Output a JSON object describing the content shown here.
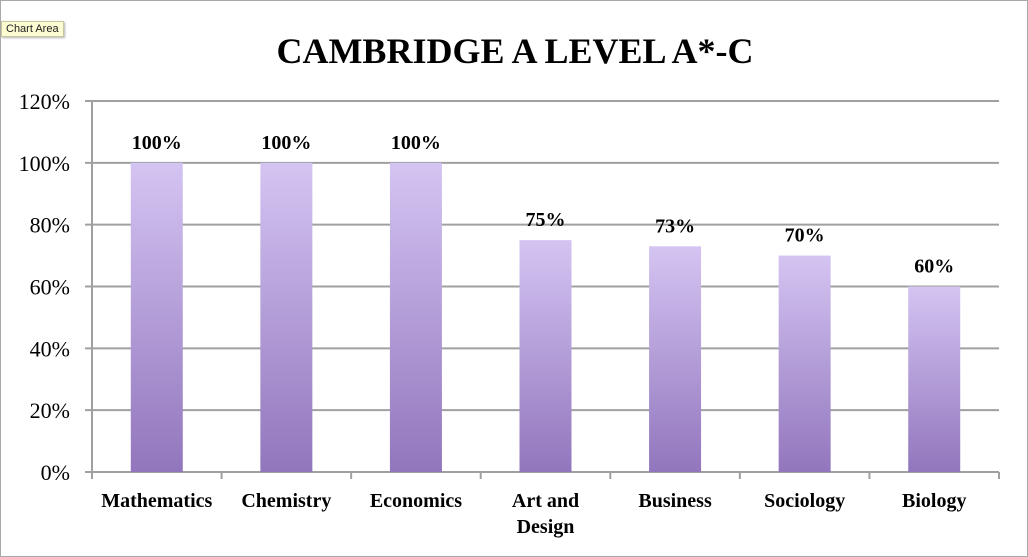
{
  "tooltip": "Chart Area",
  "chart_data": {
    "type": "bar",
    "title": "CAMBRIDGE A LEVEL A*-C",
    "categories": [
      "Mathematics",
      "Chemistry",
      "Economics",
      "Art and Design",
      "Business",
      "Sociology",
      "Biology"
    ],
    "values": [
      100,
      100,
      100,
      75,
      73,
      70,
      60
    ],
    "data_labels": [
      "100%",
      "100%",
      "100%",
      "75%",
      "73%",
      "70%",
      "60%"
    ],
    "ylim": [
      0,
      120
    ],
    "yticks": [
      "0%",
      "20%",
      "40%",
      "60%",
      "80%",
      "100%",
      "120%"
    ],
    "grid": true,
    "legend": "none",
    "colors": {
      "bar_top": "#d4c4f2",
      "bar_bottom": "#9276bd",
      "grid": "#a0a0a0"
    }
  }
}
